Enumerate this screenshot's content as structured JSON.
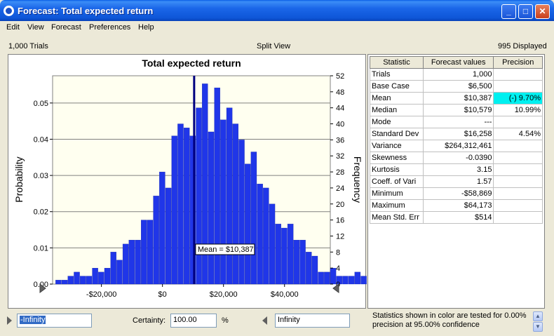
{
  "window": {
    "title": "Forecast: Total expected return"
  },
  "menu": [
    "Edit",
    "View",
    "Forecast",
    "Preferences",
    "Help"
  ],
  "info": {
    "trials": "1,000 Trials",
    "view": "Split View",
    "displayed": "995 Displayed"
  },
  "chart_data": {
    "type": "bar",
    "title": "Total expected return",
    "ylabel": "Probability",
    "y2label": "Frequency",
    "x_ticks": [
      "-$20,000",
      "$0",
      "$20,000",
      "$40,000"
    ],
    "x_tick_values": [
      -20000,
      0,
      20000,
      40000
    ],
    "y_ticks": [
      "0.00",
      "0.01",
      "0.02",
      "0.03",
      "0.04",
      "0.05"
    ],
    "y_tick_values": [
      0,
      0.01,
      0.02,
      0.03,
      0.04,
      0.05
    ],
    "y2_ticks": [
      "0",
      "4",
      "8",
      "12",
      "16",
      "20",
      "24",
      "28",
      "32",
      "36",
      "40",
      "44",
      "48",
      "52"
    ],
    "y2_tick_values": [
      0,
      4,
      8,
      12,
      16,
      20,
      24,
      28,
      32,
      36,
      40,
      44,
      48,
      52
    ],
    "xlim": [
      -36000,
      55000
    ],
    "ylim": [
      0,
      52
    ],
    "bin_width": 2000,
    "bin_start": -35000,
    "frequencies": [
      1,
      1,
      2,
      3,
      2,
      2,
      4,
      3,
      4,
      8,
      6,
      10,
      11,
      11,
      16,
      16,
      22,
      28,
      24,
      37,
      40,
      39,
      37,
      44,
      50,
      38,
      49,
      41,
      44,
      40,
      36,
      30,
      33,
      25,
      24,
      20,
      15,
      14,
      15,
      11,
      11,
      8,
      7,
      3,
      3,
      4,
      2,
      2,
      2,
      3,
      2,
      1
    ],
    "bar_color": "#2036e8",
    "mean_value": 10387,
    "mean_label": "Mean = $10,387",
    "mean_line_color": "#000080",
    "grid": true
  },
  "stats": {
    "headers": [
      "Statistic",
      "Forecast values",
      "Precision"
    ],
    "rows": [
      {
        "label": "Trials",
        "value": "1,000",
        "precision": ""
      },
      {
        "label": "Base Case",
        "value": "$6,500",
        "precision": ""
      },
      {
        "label": "Mean",
        "value": "$10,387",
        "precision": "(-) 9.70%",
        "highlight": true
      },
      {
        "label": "Median",
        "value": "$10,579",
        "precision": "10.99%"
      },
      {
        "label": "Mode",
        "value": "---",
        "precision": ""
      },
      {
        "label": "Standard Dev",
        "value": "$16,258",
        "precision": "4.54%"
      },
      {
        "label": "Variance",
        "value": "$264,312,461",
        "precision": ""
      },
      {
        "label": "Skewness",
        "value": "-0.0390",
        "precision": ""
      },
      {
        "label": "Kurtosis",
        "value": "3.15",
        "precision": ""
      },
      {
        "label": "Coeff. of Vari",
        "value": "1.57",
        "precision": ""
      },
      {
        "label": "Minimum",
        "value": "-$58,869",
        "precision": ""
      },
      {
        "label": "Maximum",
        "value": "$64,173",
        "precision": ""
      },
      {
        "label": "Mean  Std. Err",
        "value": "$514",
        "precision": ""
      }
    ],
    "highlight_color": "#00f0f0"
  },
  "bottom": {
    "left_value": "-Infinity",
    "certainty_label": "Certainty:",
    "certainty_value": "100.00",
    "percent_label": "%",
    "right_value": "Infinity",
    "note": "Statistics shown in color are tested for 0.00% precision at 95.00% confidence"
  }
}
